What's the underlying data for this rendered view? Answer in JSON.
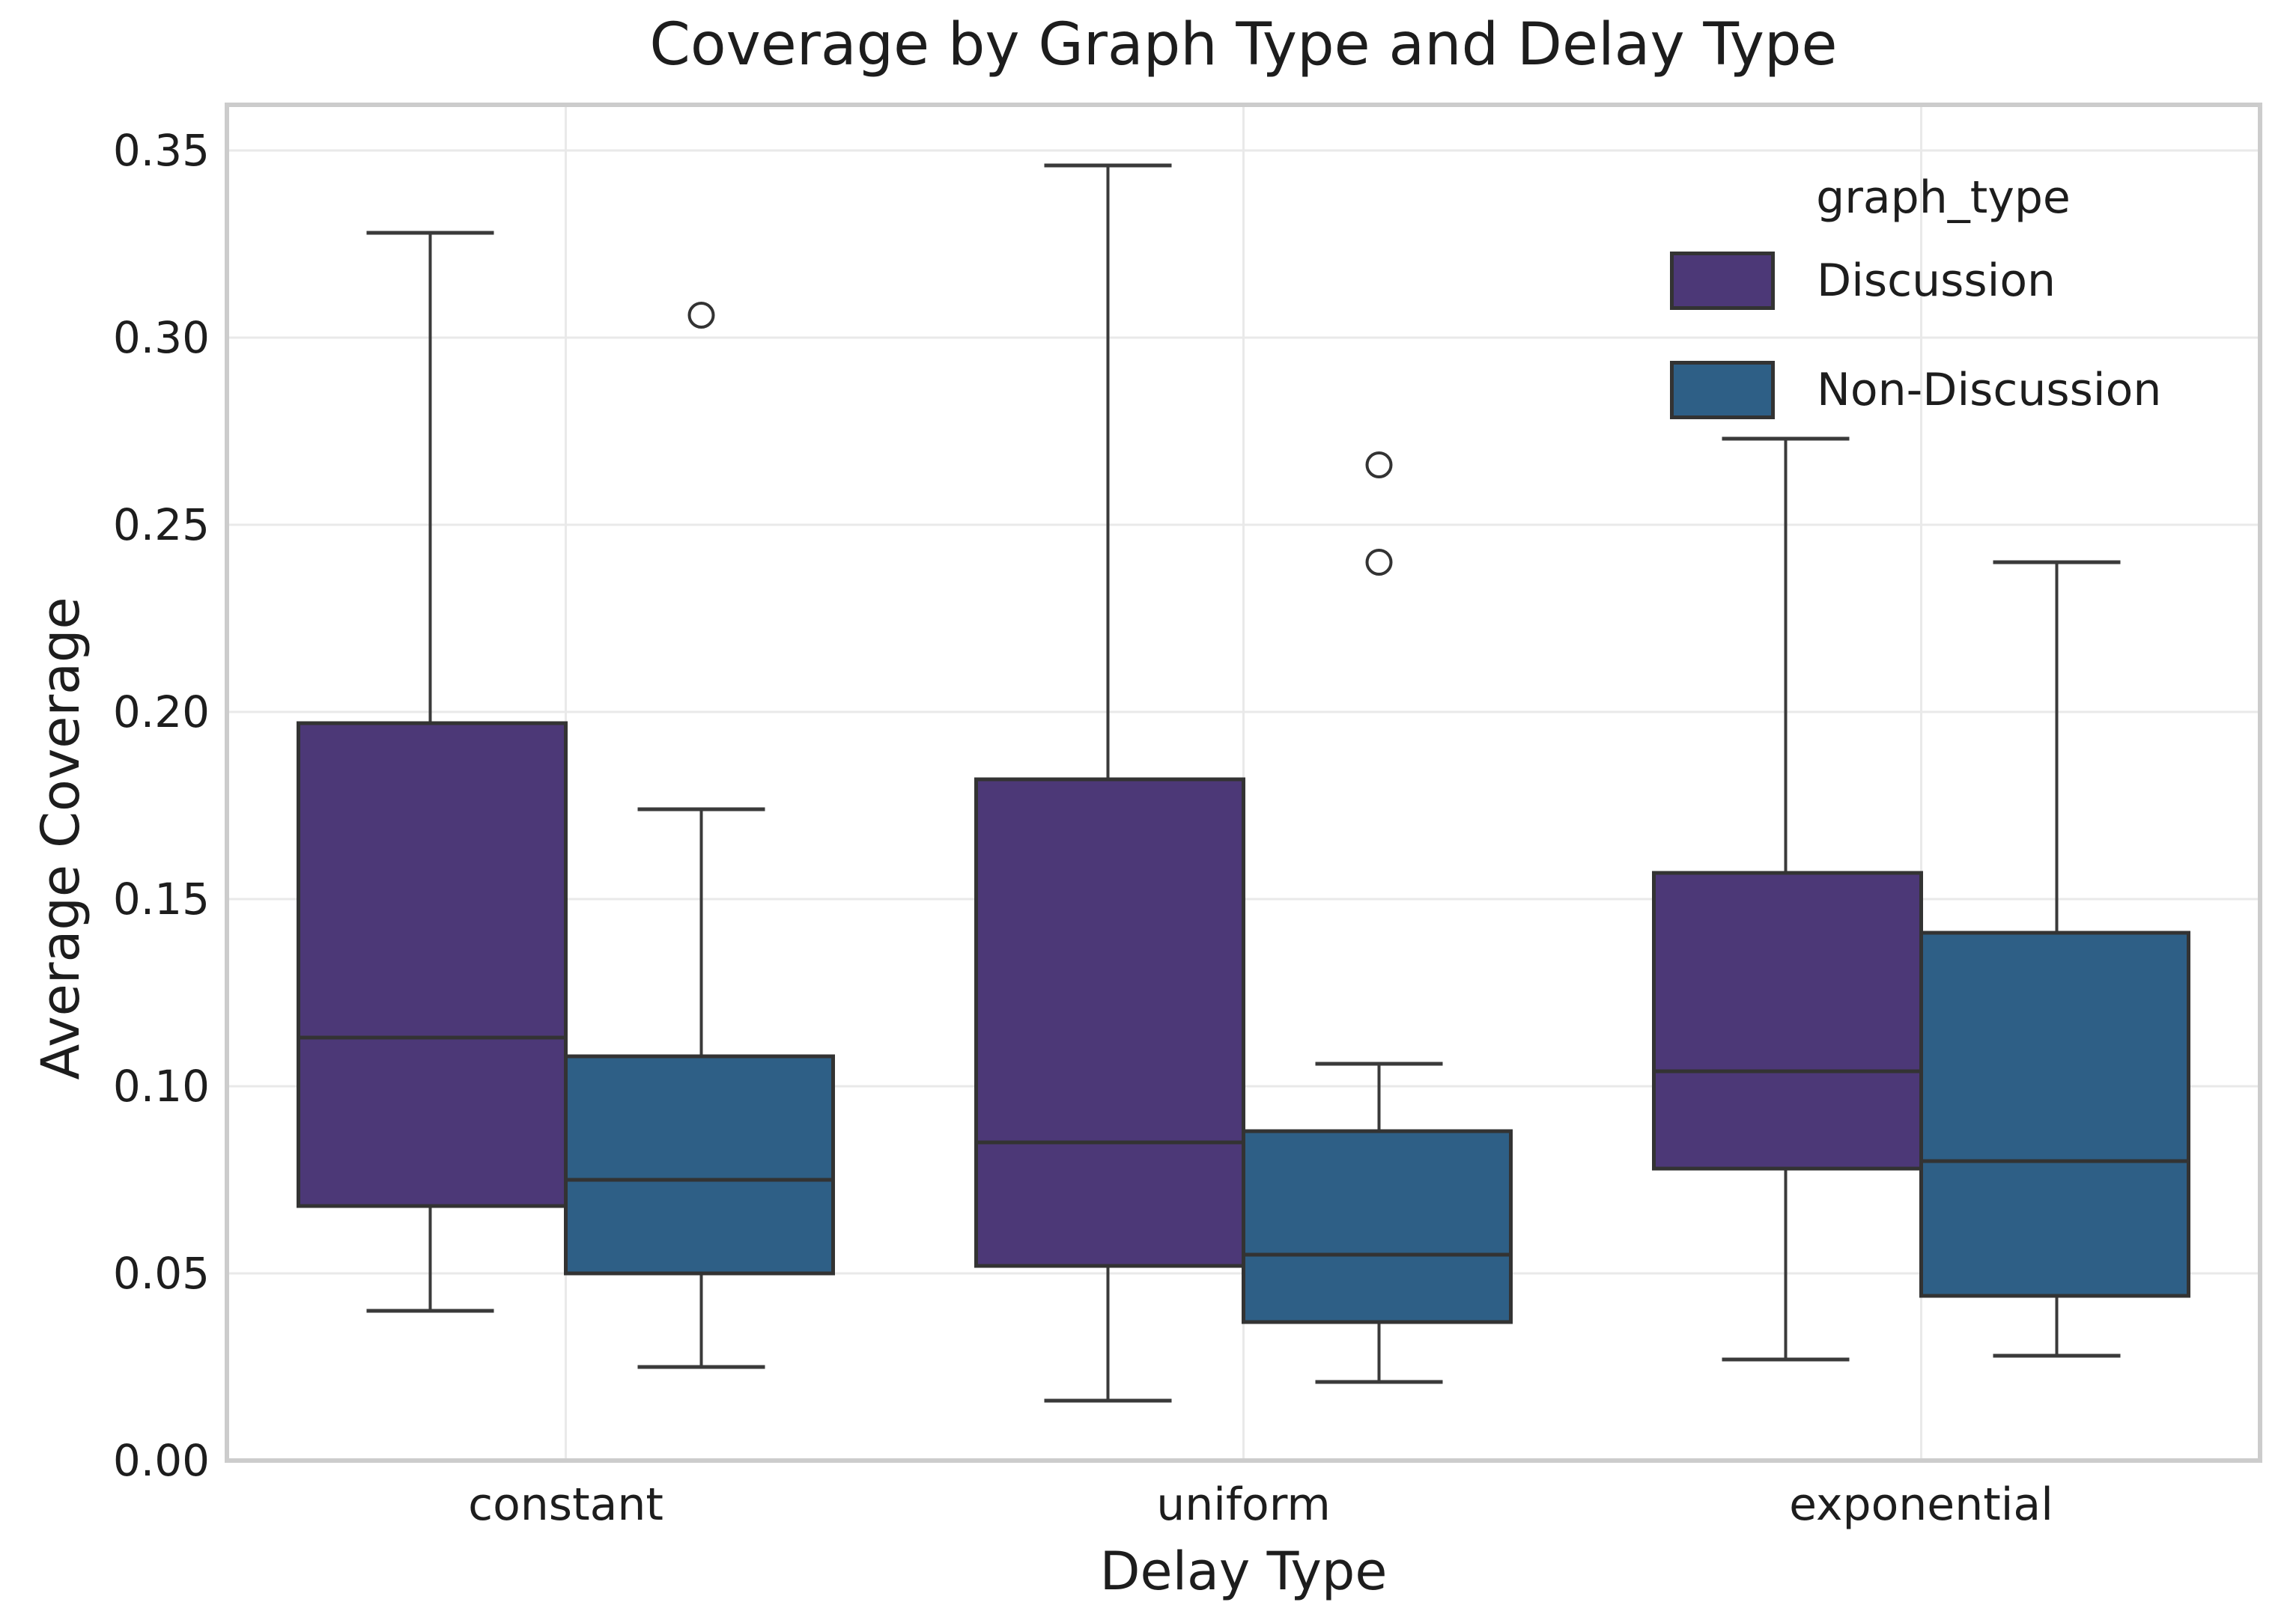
{
  "chart_data": {
    "type": "box",
    "title": "Coverage by Graph Type and Delay Type",
    "xlabel": "Delay Type",
    "ylabel": "Average Coverage",
    "categories": [
      "constant",
      "uniform",
      "exponential"
    ],
    "ylim": [
      0,
      0.3622
    ],
    "yticks": [
      0.0,
      0.05,
      0.1,
      0.15,
      0.2,
      0.25,
      0.3,
      0.35
    ],
    "ytick_labels": [
      "0.00",
      "0.05",
      "0.10",
      "0.15",
      "0.20",
      "0.25",
      "0.30",
      "0.35"
    ],
    "grid": "on",
    "legend": {
      "title": "graph_type",
      "position": "upper right"
    },
    "colors": {
      "discussion_fill": "#4c3877",
      "non_discussion_fill": "#2e5f86",
      "box_edge": "#333333",
      "median_line": "#333333",
      "whisker": "#3a3a3a",
      "gridline": "#e9e9e9",
      "spine": "#cccccc",
      "text": "#1d1d1d",
      "outlier_fill": "#ffffff"
    },
    "series": [
      {
        "name": "Discussion",
        "color": "#4c3877",
        "boxes": [
          {
            "category": "constant",
            "whislo": 0.04,
            "q1": 0.068,
            "med": 0.113,
            "q3": 0.197,
            "whishi": 0.328,
            "outliers": []
          },
          {
            "category": "uniform",
            "whislo": 0.016,
            "q1": 0.052,
            "med": 0.085,
            "q3": 0.182,
            "whishi": 0.346,
            "outliers": []
          },
          {
            "category": "exponential",
            "whislo": 0.027,
            "q1": 0.078,
            "med": 0.104,
            "q3": 0.157,
            "whishi": 0.273,
            "outliers": []
          }
        ]
      },
      {
        "name": "Non-Discussion",
        "color": "#2e5f86",
        "boxes": [
          {
            "category": "constant",
            "whislo": 0.025,
            "q1": 0.05,
            "med": 0.075,
            "q3": 0.108,
            "whishi": 0.174,
            "outliers": [
              0.306
            ]
          },
          {
            "category": "uniform",
            "whislo": 0.021,
            "q1": 0.037,
            "med": 0.055,
            "q3": 0.088,
            "whishi": 0.106,
            "outliers": [
              0.24,
              0.266
            ]
          },
          {
            "category": "exponential",
            "whislo": 0.028,
            "q1": 0.044,
            "med": 0.08,
            "q3": 0.141,
            "whishi": 0.24,
            "outliers": []
          }
        ]
      }
    ]
  }
}
